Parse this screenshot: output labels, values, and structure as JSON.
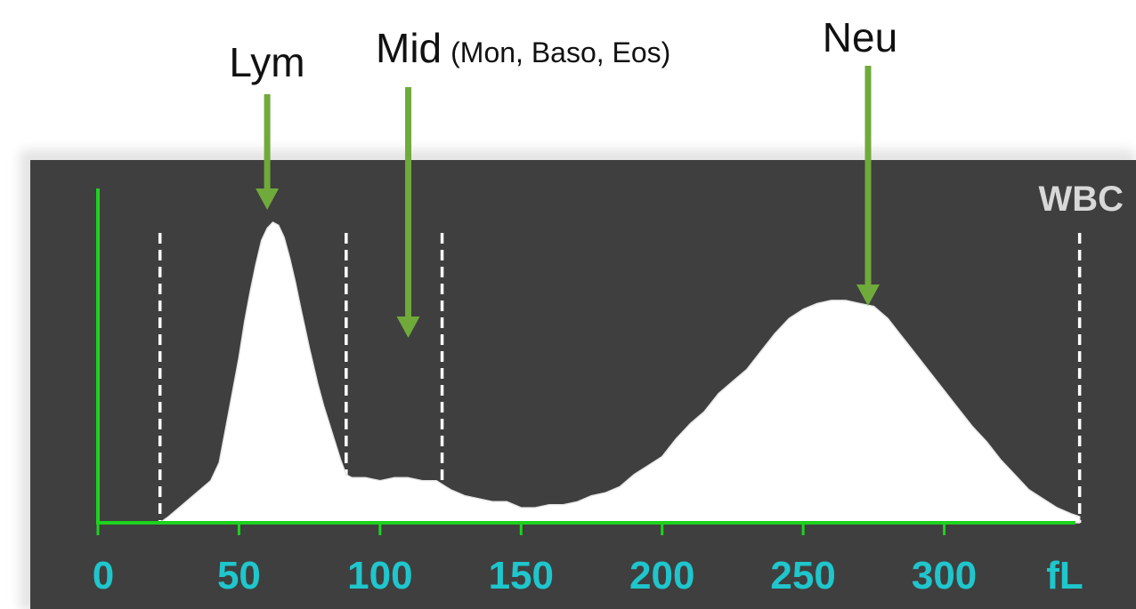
{
  "chart_data": {
    "type": "area",
    "panel_label": "WBC",
    "x_unit": "fL",
    "xlim": [
      0,
      350
    ],
    "x_ticks": [
      0,
      50,
      100,
      150,
      200,
      250,
      300
    ],
    "x_tick_labels": [
      "0",
      "50",
      "100",
      "150",
      "200",
      "250",
      "300"
    ],
    "ylim": [
      0,
      1
    ],
    "grid": false,
    "annotations": [
      {
        "label": "Lym",
        "x": 60
      },
      {
        "label": "Mid",
        "sublabel": "(Mon, Baso, Eos)",
        "x": 110
      },
      {
        "label": "Neu",
        "x": 273
      }
    ],
    "discriminators": [
      22,
      88,
      122,
      348
    ],
    "series": [
      {
        "x": [
          22,
          25,
          30,
          35,
          40,
          43,
          46,
          50,
          52,
          54,
          56,
          58,
          60,
          62,
          64,
          66,
          68,
          70,
          72,
          75,
          78,
          80,
          83,
          86,
          88,
          90,
          95,
          100,
          105,
          110,
          115,
          120,
          125,
          130,
          135,
          140,
          145,
          150,
          155,
          160,
          165,
          170,
          175,
          180,
          185,
          190,
          195,
          200,
          205,
          210,
          215,
          220,
          225,
          230,
          235,
          240,
          245,
          250,
          255,
          260,
          265,
          270,
          275,
          280,
          285,
          290,
          295,
          300,
          305,
          310,
          315,
          320,
          325,
          330,
          335,
          340,
          345,
          348
        ],
        "y": [
          0.0,
          0.02,
          0.06,
          0.1,
          0.14,
          0.2,
          0.35,
          0.55,
          0.67,
          0.77,
          0.86,
          0.94,
          0.98,
          1.0,
          0.99,
          0.95,
          0.88,
          0.8,
          0.71,
          0.58,
          0.46,
          0.39,
          0.3,
          0.21,
          0.16,
          0.15,
          0.15,
          0.14,
          0.15,
          0.15,
          0.14,
          0.14,
          0.11,
          0.09,
          0.08,
          0.07,
          0.07,
          0.05,
          0.05,
          0.06,
          0.06,
          0.07,
          0.09,
          0.1,
          0.12,
          0.16,
          0.19,
          0.22,
          0.28,
          0.33,
          0.37,
          0.43,
          0.47,
          0.51,
          0.57,
          0.63,
          0.68,
          0.71,
          0.73,
          0.74,
          0.74,
          0.73,
          0.72,
          0.68,
          0.62,
          0.56,
          0.5,
          0.44,
          0.38,
          0.32,
          0.27,
          0.21,
          0.16,
          0.11,
          0.08,
          0.05,
          0.03,
          0.02
        ]
      }
    ]
  },
  "colors": {
    "panel_background": "#3f3f3f",
    "histogram_fill": "#ffffff",
    "axis_line": "#1ed21e",
    "tick_label": "#1fc6cc",
    "annotation_arrow": "#6faa3a",
    "discriminator_line": "#ffffff",
    "panel_label": "#d8d8d8"
  }
}
